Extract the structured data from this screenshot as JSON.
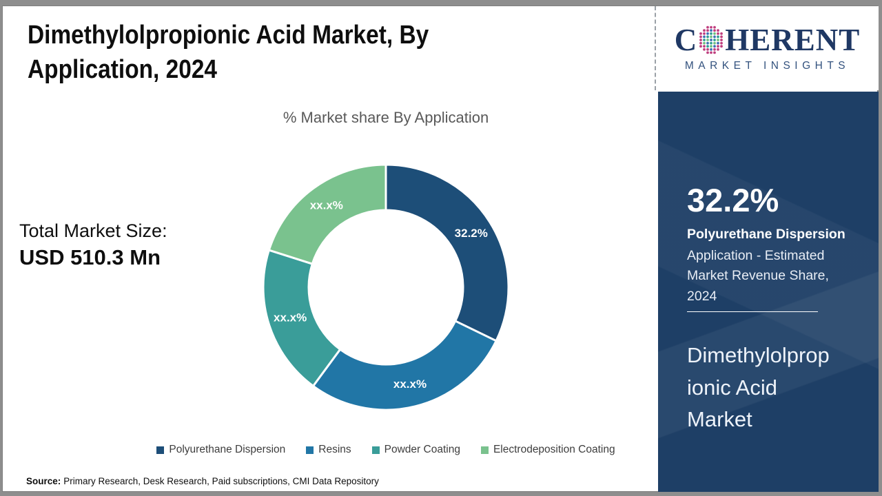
{
  "page": {
    "title": "Dimethylolpropionic Acid Market, By Application, 2024",
    "title_lines": [
      "Dimethylolpropionic Acid Market, By",
      "Application, 2024"
    ]
  },
  "logo": {
    "prefix": "C",
    "suffix": "HERENT",
    "tagline": "MARKET INSIGHTS",
    "globe_icon": "dotted-globe-icon",
    "brand_color": "#1f3864",
    "globe_dot_colors": [
      "#2f9e94",
      "#6fbf7f",
      "#3d6fb4"
    ],
    "globe_edge_dot_color": "#bf3f7f"
  },
  "sidebar": {
    "stat_value": "32.2%",
    "stat_segment": "Polyurethane Dispersion",
    "stat_description": "Application - Estimated Market Revenue Share, 2024",
    "market_name": "Dimethylolpropionic Acid Market",
    "market_name_lines": [
      "Dimethylolprop",
      "ionic Acid",
      "Market"
    ],
    "background_color": "#1e3f66"
  },
  "stats": {
    "total_label": "Total Market Size:",
    "total_value": "USD 510.3 Mn"
  },
  "chart_data": {
    "type": "pie",
    "subtype": "donut",
    "title": "% Market share By Application",
    "start_angle_deg": 0,
    "clockwise": true,
    "inner_radius_ratio": 0.63,
    "gap_color": "#ffffff",
    "legend_position": "bottom",
    "segments": [
      {
        "label": "Polyurethane Dispersion",
        "display_value": "32.2%",
        "value_pct": 32.2,
        "color": "#1d4e78"
      },
      {
        "label": "Resins",
        "display_value": "xx.x%",
        "value_pct": 27.9,
        "color": "#2176a6"
      },
      {
        "label": "Powder Coating",
        "display_value": "xx.x%",
        "value_pct": 19.8,
        "color": "#3a9d99"
      },
      {
        "label": "Electrodeposition Coating",
        "display_value": "xx.x%",
        "value_pct": 20.1,
        "color": "#7ac28e"
      }
    ]
  },
  "footer": {
    "source_label": "Source:",
    "source_text": "Primary Research, Desk Research, Paid subscriptions, CMI Data Repository"
  }
}
